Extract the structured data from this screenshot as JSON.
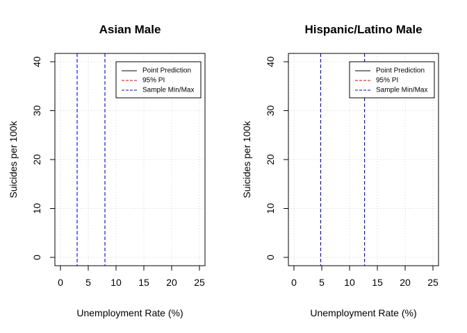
{
  "chart_data": [
    {
      "type": "line",
      "title": "Asian Male",
      "xlabel": "Unemployment Rate (%)",
      "ylabel": "Suicides per 100k",
      "xlim": [
        -1,
        26
      ],
      "ylim": [
        -1.7,
        41.7
      ],
      "xticks": [
        "0",
        "5",
        "10",
        "15",
        "20",
        "25"
      ],
      "yticks": [
        "0",
        "10",
        "20",
        "30",
        "40"
      ],
      "grid": true,
      "legend_position": "top-right",
      "legend": [
        {
          "label": "Point Prediction",
          "color": "#000000",
          "dash": "solid"
        },
        {
          "label": "95% PI",
          "color": "#dd0000",
          "dash": "dashed"
        },
        {
          "label": "Sample Min/Max",
          "color": "#0000dd",
          "dash": "dashed"
        }
      ],
      "vlines": [
        3.0,
        8.0
      ],
      "vline_color": "#0000dd"
    },
    {
      "type": "line",
      "title": "Hispanic/Latino Male",
      "xlabel": "Unemployment Rate (%)",
      "ylabel": "Suicides per 100k",
      "xlim": [
        -1,
        26
      ],
      "ylim": [
        -1.7,
        41.7
      ],
      "xticks": [
        "0",
        "5",
        "10",
        "15",
        "20",
        "25"
      ],
      "yticks": [
        "0",
        "10",
        "20",
        "30",
        "40"
      ],
      "grid": true,
      "legend_position": "top-right",
      "legend": [
        {
          "label": "Point Prediction",
          "color": "#000000",
          "dash": "solid"
        },
        {
          "label": "95% PI",
          "color": "#dd0000",
          "dash": "dashed"
        },
        {
          "label": "Sample Min/Max",
          "color": "#0000dd",
          "dash": "dashed"
        }
      ],
      "vlines": [
        4.8,
        12.7
      ],
      "vline_color": "#0000dd"
    }
  ]
}
